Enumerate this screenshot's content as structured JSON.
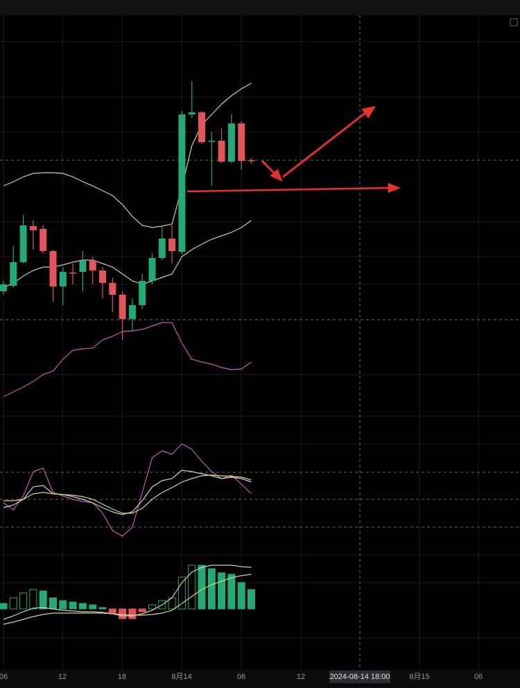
{
  "chart_data": [
    {
      "type": "candlestick",
      "up_color": "#22ab76",
      "down_color": "#e5535b",
      "ylim": [
        0,
        578
      ],
      "open": [
        180,
        188,
        222,
        274,
        270,
        238,
        187,
        207,
        208,
        224,
        210,
        192,
        175,
        140,
        160,
        195,
        228,
        256,
        237,
        435,
        438,
        396,
        397,
        367,
        422,
        369
      ],
      "close": [
        190,
        222,
        275,
        268,
        238,
        187,
        208,
        206,
        224,
        210,
        192,
        175,
        140,
        160,
        195,
        228,
        256,
        238,
        435,
        438,
        395,
        397,
        367,
        422,
        368,
        368
      ],
      "high": [
        195,
        245,
        290,
        282,
        275,
        240,
        215,
        220,
        238,
        230,
        215,
        200,
        180,
        170,
        205,
        235,
        275,
        275,
        440,
        483,
        440,
        410,
        415,
        435,
        425,
        372
      ],
      "low": [
        175,
        185,
        220,
        240,
        235,
        165,
        160,
        190,
        180,
        190,
        170,
        150,
        110,
        122,
        155,
        190,
        225,
        220,
        233,
        430,
        392,
        332,
        365,
        365,
        355,
        364
      ],
      "series": [
        {
          "color": "#d8d27a",
          "values": [
            332,
            338,
            345,
            350,
            351,
            351,
            350,
            345,
            338,
            332,
            325,
            318,
            305,
            288,
            275,
            272,
            274,
            277,
            330,
            390,
            420,
            435,
            450,
            462,
            472,
            480
          ]
        },
        {
          "color": "#c9c9c9",
          "values": [
            185,
            192,
            202,
            210,
            215,
            215,
            218,
            222,
            225,
            225,
            220,
            215,
            205,
            195,
            190,
            195,
            200,
            205,
            230,
            240,
            248,
            255,
            260,
            265,
            272,
            282
          ]
        },
        {
          "color": "#c45bb0",
          "values": [
            28,
            35,
            42,
            50,
            60,
            65,
            82,
            95,
            97,
            98,
            110,
            115,
            122,
            123,
            125,
            130,
            135,
            135,
            105,
            82,
            78,
            75,
            70,
            67,
            68,
            78
          ]
        }
      ]
    },
    {
      "type": "line",
      "ylim": [
        0,
        180
      ],
      "series": [
        {
          "color": "#c45bb0",
          "values": [
            55,
            45,
            65,
            100,
            105,
            70,
            65,
            60,
            57,
            55,
            40,
            15,
            7,
            20,
            70,
            120,
            130,
            125,
            140,
            132,
            115,
            100,
            90,
            95,
            82,
            68
          ]
        },
        {
          "color": "#d0d0d0",
          "values": [
            48,
            52,
            60,
            78,
            80,
            68,
            67,
            64,
            60,
            55,
            48,
            42,
            38,
            42,
            58,
            78,
            87,
            90,
            102,
            100,
            97,
            94,
            90,
            92,
            90,
            85
          ]
        },
        {
          "color": "#d8d27a",
          "values": [
            58,
            58,
            60,
            68,
            70,
            68,
            67,
            66,
            64,
            60,
            53,
            46,
            40,
            40,
            47,
            60,
            70,
            77,
            85,
            90,
            94,
            95,
            94,
            93,
            92,
            88
          ]
        }
      ]
    },
    {
      "type": "histogram",
      "up_color": "#22ab76",
      "down_color": "#e5535b",
      "ylim": [
        -87,
        98
      ],
      "values": [
        8,
        16,
        23,
        28,
        26,
        16,
        12,
        10,
        8,
        6,
        2,
        -6,
        -14,
        -14,
        -4,
        6,
        12,
        16,
        46,
        63,
        63,
        58,
        52,
        50,
        38,
        28
      ],
      "series": [
        {
          "color": "#d0d0d0",
          "values": [
            -15,
            -10,
            -4,
            1,
            2,
            0,
            -2,
            -3,
            -4,
            -4,
            -5,
            -7,
            -10,
            -10,
            -7,
            -2,
            6,
            16,
            38,
            53,
            60,
            63,
            63,
            63,
            61,
            60
          ]
        },
        {
          "color": "#d8d27a",
          "values": [
            -22,
            -19,
            -15,
            -11,
            -8,
            -6,
            -6,
            -6,
            -6,
            -6,
            -6,
            -7,
            -8,
            -9,
            -9,
            -8,
            -6,
            -2,
            8,
            18,
            28,
            35,
            40,
            45,
            48,
            50
          ]
        }
      ]
    }
  ],
  "x_axis": {
    "labels": [
      "06",
      "12",
      "18",
      "8月14",
      "06",
      "12",
      "8月15",
      "06"
    ],
    "crosshair_label": "2024-08-14 18:00"
  }
}
